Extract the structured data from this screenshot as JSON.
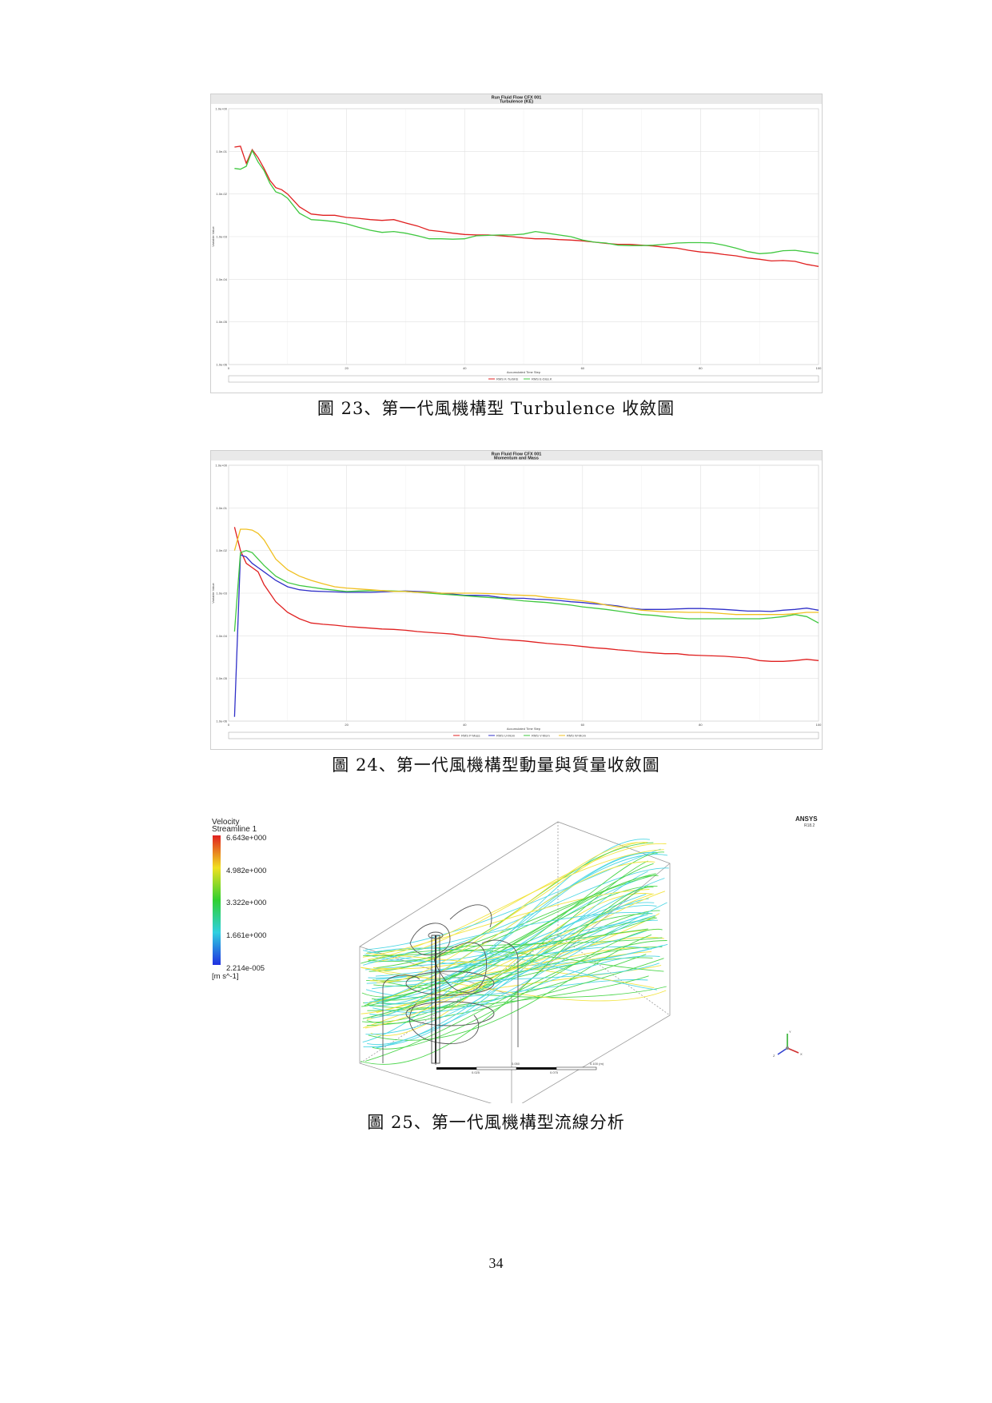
{
  "figures": [
    {
      "caption": "圖 23、第一代風機構型 Turbulence 收斂圖",
      "chart_data": {
        "type": "line",
        "title": "Run Fluid Flow CFX 001",
        "subtitle": "Turbulence (KE)",
        "xlabel": "Accumulated Time Step",
        "ylabel": "Variable Value",
        "x_ticks": [
          "0",
          "20",
          "40",
          "60",
          "80",
          "100"
        ],
        "y_ticks": [
          "1.0e+00",
          "1.0e-01",
          "1.0e-02",
          "1.0e-03",
          "1.0e-04",
          "1.0e-05",
          "1.0e-06"
        ],
        "xlim": [
          0,
          100
        ],
        "ylim_log10": [
          -6,
          0
        ],
        "y_scale": "log",
        "grid": true,
        "legend_position": "bottom",
        "series": [
          {
            "name": "RMS K-TurbKE",
            "color": "#e02020",
            "x": [
              1,
              2,
              3,
              4,
              5,
              6,
              7,
              8,
              9,
              10,
              12,
              14,
              16,
              18,
              20,
              22,
              24,
              26,
              28,
              30,
              32,
              34,
              36,
              38,
              40,
              42,
              44,
              46,
              48,
              50,
              52,
              54,
              56,
              58,
              60,
              62,
              64,
              66,
              68,
              70,
              72,
              74,
              76,
              78,
              80,
              82,
              84,
              86,
              88,
              90,
              92,
              94,
              96,
              98,
              100
            ],
            "log10y": [
              -0.9,
              -0.88,
              -1.28,
              -0.96,
              -1.15,
              -1.4,
              -1.68,
              -1.85,
              -1.9,
              -2.0,
              -2.3,
              -2.47,
              -2.5,
              -2.5,
              -2.55,
              -2.57,
              -2.6,
              -2.62,
              -2.6,
              -2.68,
              -2.75,
              -2.85,
              -2.88,
              -2.92,
              -2.95,
              -2.96,
              -2.96,
              -2.98,
              -3.0,
              -3.03,
              -3.05,
              -3.05,
              -3.07,
              -3.08,
              -3.1,
              -3.13,
              -3.16,
              -3.18,
              -3.18,
              -3.2,
              -3.22,
              -3.25,
              -3.27,
              -3.32,
              -3.36,
              -3.38,
              -3.42,
              -3.45,
              -3.5,
              -3.53,
              -3.57,
              -3.56,
              -3.58,
              -3.65,
              -3.7
            ]
          },
          {
            "name": "RMS E-Diss.K",
            "color": "#40c840",
            "x": [
              1,
              2,
              3,
              4,
              5,
              6,
              7,
              8,
              9,
              10,
              12,
              14,
              16,
              18,
              20,
              22,
              24,
              26,
              28,
              30,
              32,
              34,
              36,
              38,
              40,
              42,
              44,
              46,
              48,
              50,
              52,
              54,
              56,
              58,
              60,
              62,
              64,
              66,
              68,
              70,
              72,
              74,
              76,
              78,
              80,
              82,
              84,
              86,
              88,
              90,
              92,
              94,
              96,
              98,
              100
            ],
            "log10y": [
              -1.4,
              -1.42,
              -1.35,
              -0.98,
              -1.25,
              -1.45,
              -1.75,
              -1.95,
              -2.0,
              -2.1,
              -2.45,
              -2.6,
              -2.62,
              -2.65,
              -2.7,
              -2.78,
              -2.85,
              -2.9,
              -2.88,
              -2.92,
              -2.98,
              -3.05,
              -3.05,
              -3.06,
              -3.05,
              -2.98,
              -2.97,
              -2.96,
              -2.96,
              -2.94,
              -2.88,
              -2.92,
              -2.96,
              -3.0,
              -3.08,
              -3.13,
              -3.15,
              -3.2,
              -3.21,
              -3.21,
              -3.2,
              -3.18,
              -3.15,
              -3.14,
              -3.14,
              -3.15,
              -3.2,
              -3.27,
              -3.35,
              -3.4,
              -3.38,
              -3.33,
              -3.32,
              -3.36,
              -3.4
            ]
          }
        ]
      }
    },
    {
      "caption": "圖 24、第一代風機構型動量與質量收斂圖",
      "chart_data": {
        "type": "line",
        "title": "Run Fluid Flow CFX 001",
        "subtitle": "Momentum and Mass",
        "xlabel": "Accumulated Time Step",
        "ylabel": "Variable Value",
        "x_ticks": [
          "0",
          "20",
          "40",
          "60",
          "80",
          "100"
        ],
        "y_ticks": [
          "1.0e+00",
          "1.0e-01",
          "1.0e-02",
          "1.0e-03",
          "1.0e-04",
          "1.0e-05",
          "1.0e-06"
        ],
        "xlim": [
          0,
          100
        ],
        "ylim_log10": [
          -6,
          0
        ],
        "y_scale": "log",
        "grid": true,
        "legend_position": "bottom",
        "series": [
          {
            "name": "RMS P-Mass",
            "color": "#e02020",
            "x": [
              1,
              2,
              3,
              4,
              5,
              6,
              8,
              10,
              12,
              14,
              16,
              18,
              20,
              22,
              24,
              26,
              28,
              30,
              32,
              34,
              36,
              38,
              40,
              42,
              44,
              46,
              48,
              50,
              52,
              54,
              56,
              58,
              60,
              62,
              64,
              66,
              68,
              70,
              72,
              74,
              76,
              78,
              80,
              82,
              84,
              86,
              88,
              90,
              92,
              94,
              96,
              98,
              100
            ],
            "log10y": [
              -1.45,
              -2.0,
              -2.3,
              -2.4,
              -2.5,
              -2.8,
              -3.2,
              -3.45,
              -3.6,
              -3.7,
              -3.73,
              -3.75,
              -3.78,
              -3.8,
              -3.82,
              -3.84,
              -3.85,
              -3.87,
              -3.9,
              -3.92,
              -3.94,
              -3.96,
              -4.0,
              -4.02,
              -4.05,
              -4.08,
              -4.1,
              -4.12,
              -4.15,
              -4.18,
              -4.2,
              -4.22,
              -4.25,
              -4.28,
              -4.3,
              -4.33,
              -4.35,
              -4.38,
              -4.4,
              -4.42,
              -4.42,
              -4.45,
              -4.46,
              -4.47,
              -4.48,
              -4.5,
              -4.52,
              -4.58,
              -4.6,
              -4.6,
              -4.58,
              -4.55,
              -4.58
            ]
          },
          {
            "name": "RMS U-Mom",
            "color": "#3030c8",
            "x": [
              1,
              2,
              3,
              4,
              5,
              6,
              8,
              10,
              12,
              14,
              16,
              18,
              20,
              22,
              24,
              26,
              28,
              30,
              32,
              34,
              36,
              38,
              40,
              42,
              44,
              46,
              48,
              50,
              52,
              54,
              56,
              58,
              60,
              62,
              64,
              66,
              68,
              70,
              72,
              74,
              76,
              78,
              80,
              82,
              84,
              86,
              88,
              90,
              92,
              94,
              96,
              98,
              100
            ],
            "log10y": [
              -5.9,
              -2.1,
              -2.15,
              -2.3,
              -2.4,
              -2.5,
              -2.7,
              -2.85,
              -2.92,
              -2.95,
              -2.96,
              -2.97,
              -2.98,
              -2.98,
              -2.98,
              -2.97,
              -2.96,
              -2.95,
              -2.96,
              -2.97,
              -3.0,
              -3.02,
              -3.05,
              -3.05,
              -3.06,
              -3.1,
              -3.12,
              -3.12,
              -3.14,
              -3.15,
              -3.17,
              -3.2,
              -3.22,
              -3.25,
              -3.27,
              -3.3,
              -3.35,
              -3.38,
              -3.38,
              -3.38,
              -3.37,
              -3.36,
              -3.36,
              -3.37,
              -3.38,
              -3.4,
              -3.42,
              -3.42,
              -3.43,
              -3.4,
              -3.38,
              -3.35,
              -3.4
            ]
          },
          {
            "name": "RMS V-Mom",
            "color": "#40c840",
            "x": [
              1,
              2,
              3,
              4,
              5,
              6,
              8,
              10,
              12,
              14,
              16,
              18,
              20,
              22,
              24,
              26,
              28,
              30,
              32,
              34,
              36,
              38,
              40,
              42,
              44,
              46,
              48,
              50,
              52,
              54,
              56,
              58,
              60,
              62,
              64,
              66,
              68,
              70,
              72,
              74,
              76,
              78,
              80,
              82,
              84,
              86,
              88,
              90,
              92,
              94,
              96,
              98,
              100
            ],
            "log10y": [
              -3.9,
              -2.05,
              -2.0,
              -2.05,
              -2.2,
              -2.35,
              -2.6,
              -2.75,
              -2.82,
              -2.86,
              -2.9,
              -2.93,
              -2.96,
              -2.95,
              -2.94,
              -2.94,
              -2.95,
              -2.96,
              -2.98,
              -3.0,
              -3.02,
              -3.04,
              -3.06,
              -3.08,
              -3.1,
              -3.12,
              -3.15,
              -3.18,
              -3.2,
              -3.22,
              -3.25,
              -3.28,
              -3.32,
              -3.35,
              -3.38,
              -3.42,
              -3.46,
              -3.5,
              -3.52,
              -3.55,
              -3.58,
              -3.6,
              -3.6,
              -3.6,
              -3.6,
              -3.6,
              -3.6,
              -3.6,
              -3.58,
              -3.55,
              -3.5,
              -3.55,
              -3.7
            ]
          },
          {
            "name": "RMS W-Mom",
            "color": "#f0c020",
            "x": [
              1,
              2,
              3,
              4,
              5,
              6,
              8,
              10,
              12,
              14,
              16,
              18,
              20,
              22,
              24,
              26,
              28,
              30,
              32,
              34,
              36,
              38,
              40,
              42,
              44,
              46,
              48,
              50,
              52,
              54,
              56,
              58,
              60,
              62,
              64,
              66,
              68,
              70,
              72,
              74,
              76,
              78,
              80,
              82,
              84,
              86,
              88,
              90,
              92,
              94,
              96,
              98,
              100
            ],
            "log10y": [
              -2.0,
              -1.5,
              -1.5,
              -1.52,
              -1.6,
              -1.75,
              -2.2,
              -2.45,
              -2.6,
              -2.7,
              -2.78,
              -2.85,
              -2.88,
              -2.9,
              -2.92,
              -2.94,
              -2.96,
              -2.96,
              -2.98,
              -2.98,
              -3.0,
              -3.0,
              -3.0,
              -3.0,
              -3.01,
              -3.02,
              -3.04,
              -3.05,
              -3.06,
              -3.1,
              -3.12,
              -3.15,
              -3.18,
              -3.22,
              -3.28,
              -3.32,
              -3.36,
              -3.4,
              -3.42,
              -3.44,
              -3.44,
              -3.45,
              -3.45,
              -3.46,
              -3.48,
              -3.5,
              -3.5,
              -3.5,
              -3.5,
              -3.5,
              -3.48,
              -3.45,
              -3.45
            ]
          }
        ]
      }
    },
    {
      "caption": "圖 25、第一代風機構型流線分析",
      "legend": {
        "title": "Velocity",
        "subtitle": "Streamline 1",
        "values": [
          "6.643e+000",
          "4.982e+000",
          "3.322e+000",
          "1.661e+000",
          "2.214e-005"
        ],
        "unit": "[m s^-1]",
        "colors": [
          "#e02020",
          "#f0e020",
          "#30d030",
          "#30d0e0",
          "#2030e0"
        ]
      },
      "brand": "ANSYS",
      "brand_version": "R18.2",
      "scale_labels": [
        "0",
        "0.050",
        "0.100 (m)",
        "0.025",
        "0.075"
      ],
      "axis_labels": [
        "Y",
        "Z",
        "X"
      ]
    }
  ],
  "page_number": "34"
}
